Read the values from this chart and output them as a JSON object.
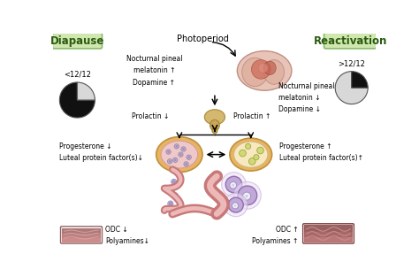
{
  "bg_color": "#ffffff",
  "diapause_label": "Diapause",
  "reactivation_label": "Reactivation",
  "photoperiod_label": "Photoperiod",
  "left_melatonin_text": "Nocturnal pineal\nmelatonin ↑\nDopamine ↑",
  "right_melatonin_text": "Nocturnal pineal\nmelatonin ↓\nDopamine ↓",
  "prolactin_left": "Prolactin ↓",
  "prolactin_right": "Prolactin ↑",
  "left_luteal_text": "Progesterone ↓\nLuteal protein factor(s)↓",
  "right_luteal_text": "Progesterone ↑\nLuteal protein factor(s)↑",
  "left_odc_text": "ODC ↓\nPolyamines↓",
  "right_odc_text": "ODC ↑\nPolyamines ↑",
  "diapause_pie_dark": 0.75,
  "reactivation_pie_dark": 0.25,
  "pie_dark_color": "#111111",
  "pie_light_color": "#d8d8d8",
  "text_fontsize": 5.5,
  "label_fontsize": 8.5,
  "small_fontsize": 5.5
}
